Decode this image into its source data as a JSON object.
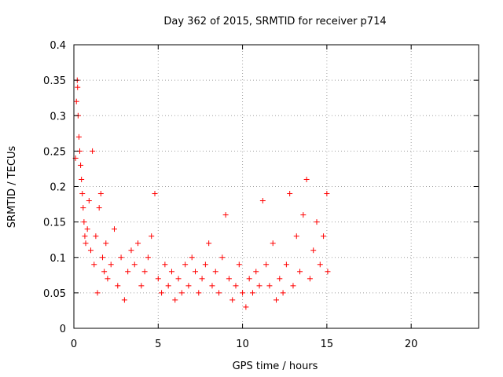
{
  "chart_data": {
    "type": "scatter",
    "title": "Day 362 of 2015, SRMTID for receiver p714",
    "xlabel": "GPS time / hours",
    "ylabel": "SRMTID / TECUs",
    "xlim": [
      0,
      24
    ],
    "ylim": [
      0,
      0.4
    ],
    "xticks": [
      0,
      5,
      10,
      15,
      20
    ],
    "xtick_labels": [
      "0",
      "5",
      "10",
      "15",
      "20"
    ],
    "yticks": [
      0,
      0.05,
      0.1,
      0.15,
      0.2,
      0.25,
      0.3,
      0.35,
      0.4
    ],
    "ytick_labels": [
      "0",
      "0.05",
      "0.1",
      "0.15",
      "0.2",
      "0.25",
      "0.3",
      "0.35",
      "0.4"
    ],
    "grid": true,
    "marker": "+",
    "series": [
      {
        "name": "SRMTID",
        "color": "#ff0000",
        "points": [
          [
            0.1,
            0.24
          ],
          [
            0.15,
            0.32
          ],
          [
            0.2,
            0.35
          ],
          [
            0.22,
            0.34
          ],
          [
            0.25,
            0.3
          ],
          [
            0.3,
            0.27
          ],
          [
            0.35,
            0.25
          ],
          [
            0.4,
            0.23
          ],
          [
            0.45,
            0.21
          ],
          [
            0.5,
            0.19
          ],
          [
            0.55,
            0.17
          ],
          [
            0.6,
            0.15
          ],
          [
            0.65,
            0.13
          ],
          [
            0.7,
            0.12
          ],
          [
            0.8,
            0.14
          ],
          [
            0.9,
            0.18
          ],
          [
            1.0,
            0.11
          ],
          [
            1.1,
            0.25
          ],
          [
            1.2,
            0.09
          ],
          [
            1.3,
            0.13
          ],
          [
            1.4,
            0.05
          ],
          [
            1.5,
            0.17
          ],
          [
            1.6,
            0.19
          ],
          [
            1.7,
            0.1
          ],
          [
            1.8,
            0.08
          ],
          [
            1.9,
            0.12
          ],
          [
            2.0,
            0.07
          ],
          [
            2.2,
            0.09
          ],
          [
            2.4,
            0.14
          ],
          [
            2.6,
            0.06
          ],
          [
            2.8,
            0.1
          ],
          [
            3.0,
            0.04
          ],
          [
            3.2,
            0.08
          ],
          [
            3.4,
            0.11
          ],
          [
            3.6,
            0.09
          ],
          [
            3.8,
            0.12
          ],
          [
            4.0,
            0.06
          ],
          [
            4.2,
            0.08
          ],
          [
            4.4,
            0.1
          ],
          [
            4.6,
            0.13
          ],
          [
            4.8,
            0.19
          ],
          [
            5.0,
            0.07
          ],
          [
            5.2,
            0.05
          ],
          [
            5.4,
            0.09
          ],
          [
            5.6,
            0.06
          ],
          [
            5.8,
            0.08
          ],
          [
            6.0,
            0.04
          ],
          [
            6.2,
            0.07
          ],
          [
            6.4,
            0.05
          ],
          [
            6.6,
            0.09
          ],
          [
            6.8,
            0.06
          ],
          [
            7.0,
            0.1
          ],
          [
            7.2,
            0.08
          ],
          [
            7.4,
            0.05
          ],
          [
            7.6,
            0.07
          ],
          [
            7.8,
            0.09
          ],
          [
            8.0,
            0.12
          ],
          [
            8.2,
            0.06
          ],
          [
            8.4,
            0.08
          ],
          [
            8.6,
            0.05
          ],
          [
            8.8,
            0.1
          ],
          [
            9.0,
            0.16
          ],
          [
            9.2,
            0.07
          ],
          [
            9.4,
            0.04
          ],
          [
            9.6,
            0.06
          ],
          [
            9.8,
            0.09
          ],
          [
            10.0,
            0.05
          ],
          [
            10.2,
            0.03
          ],
          [
            10.4,
            0.07
          ],
          [
            10.6,
            0.05
          ],
          [
            10.8,
            0.08
          ],
          [
            11.0,
            0.06
          ],
          [
            11.2,
            0.18
          ],
          [
            11.4,
            0.09
          ],
          [
            11.6,
            0.06
          ],
          [
            11.8,
            0.12
          ],
          [
            12.0,
            0.04
          ],
          [
            12.2,
            0.07
          ],
          [
            12.4,
            0.05
          ],
          [
            12.6,
            0.09
          ],
          [
            12.8,
            0.19
          ],
          [
            13.0,
            0.06
          ],
          [
            13.2,
            0.13
          ],
          [
            13.4,
            0.08
          ],
          [
            13.6,
            0.16
          ],
          [
            13.8,
            0.21
          ],
          [
            14.0,
            0.07
          ],
          [
            14.2,
            0.11
          ],
          [
            14.4,
            0.15
          ],
          [
            14.6,
            0.09
          ],
          [
            14.8,
            0.13
          ],
          [
            15.0,
            0.19
          ],
          [
            15.05,
            0.08
          ]
        ]
      }
    ]
  }
}
